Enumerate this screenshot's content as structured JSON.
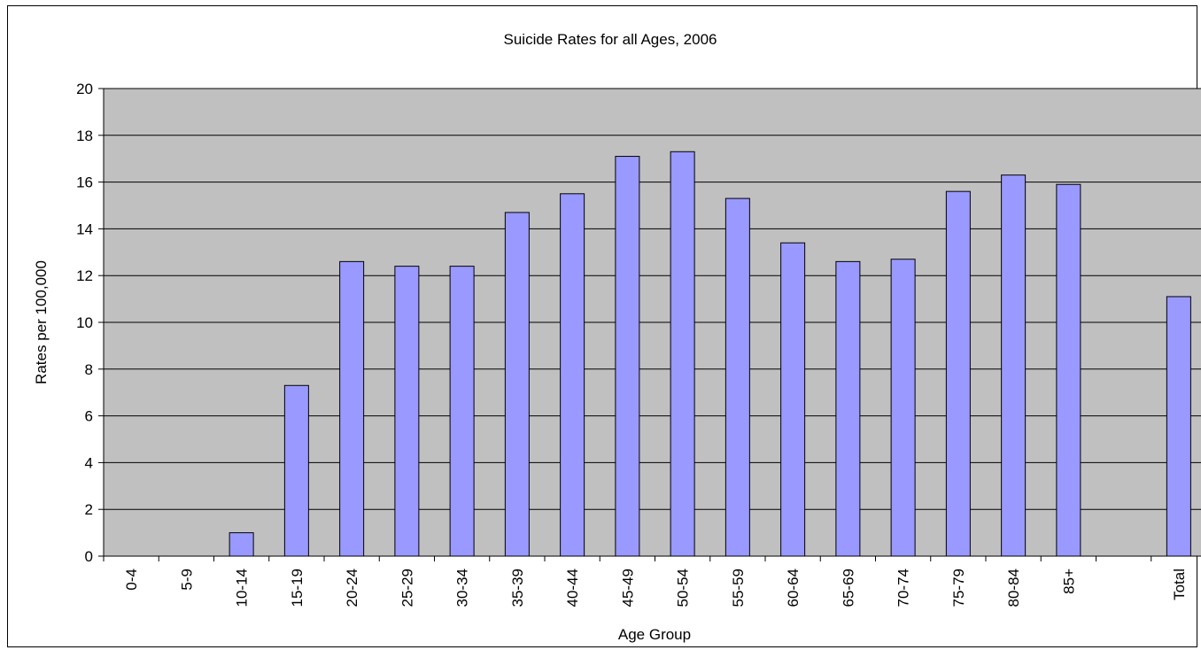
{
  "chart_data": {
    "type": "bar",
    "title": "Suicide Rates for all Ages, 2006",
    "xlabel": "Age Group",
    "ylabel": "Rates per 100,000",
    "ylim": [
      0,
      20
    ],
    "yticks": [
      0,
      2,
      4,
      6,
      8,
      10,
      12,
      14,
      16,
      18,
      20
    ],
    "grid": true,
    "legend": "none",
    "categories": [
      "0-4",
      "5-9",
      "10-14",
      "15-19",
      "20-24",
      "25-29",
      "30-34",
      "35-39",
      "40-44",
      "45-49",
      "50-54",
      "55-59",
      "60-64",
      "65-69",
      "70-74",
      "75-79",
      "80-84",
      "85+",
      "",
      "Total"
    ],
    "values": [
      0,
      0,
      1.0,
      7.3,
      12.6,
      12.4,
      12.4,
      14.7,
      15.5,
      17.1,
      17.3,
      15.3,
      13.4,
      12.6,
      12.7,
      15.6,
      16.3,
      15.9,
      null,
      11.1
    ],
    "colors": {
      "bar_fill": "#9999ff",
      "bar_stroke": "#000000",
      "plot_background": "#c0c0c0",
      "gridline": "#000000"
    }
  }
}
